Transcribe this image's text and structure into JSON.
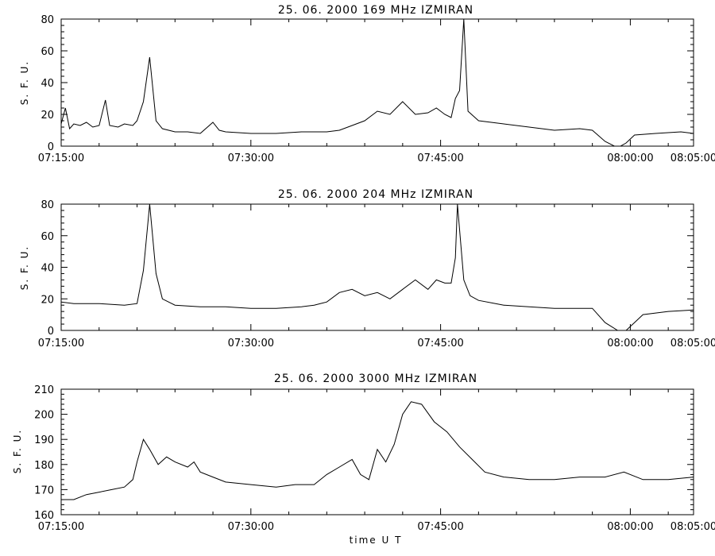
{
  "figure": {
    "xlabel": "time U T"
  },
  "chart_data": [
    {
      "type": "line",
      "title": "25. 06. 2000 169 MHz IZMIRAN",
      "ylabel": "S. F. U.",
      "xlim": [
        "07:15:00",
        "08:05:00"
      ],
      "ylim": [
        0,
        80
      ],
      "yticks": [
        0,
        20,
        40,
        60,
        80
      ],
      "xtick_labels": [
        "07:15:00",
        "07:30:00",
        "07:45:00",
        "08:00:00",
        "08:05:00"
      ],
      "grid": false,
      "series": [
        {
          "points": [
            [
              "07:15:00",
              14
            ],
            [
              "07:15:20",
              24
            ],
            [
              "07:15:40",
              11
            ],
            [
              "07:16:00",
              14
            ],
            [
              "07:16:30",
              13
            ],
            [
              "07:17:00",
              15
            ],
            [
              "07:17:30",
              12
            ],
            [
              "07:18:00",
              13
            ],
            [
              "07:18:30",
              29
            ],
            [
              "07:18:50",
              13
            ],
            [
              "07:19:30",
              12
            ],
            [
              "07:20:00",
              14
            ],
            [
              "07:20:40",
              13
            ],
            [
              "07:21:00",
              16
            ],
            [
              "07:21:30",
              28
            ],
            [
              "07:22:00",
              56
            ],
            [
              "07:22:30",
              16
            ],
            [
              "07:23:00",
              11
            ],
            [
              "07:24:00",
              9
            ],
            [
              "07:25:00",
              9
            ],
            [
              "07:26:00",
              8
            ],
            [
              "07:27:00",
              15
            ],
            [
              "07:27:30",
              10
            ],
            [
              "07:28:00",
              9
            ],
            [
              "07:30:00",
              8
            ],
            [
              "07:32:00",
              8
            ],
            [
              "07:34:00",
              9
            ],
            [
              "07:36:00",
              9
            ],
            [
              "07:37:00",
              10
            ],
            [
              "07:38:00",
              13
            ],
            [
              "07:39:00",
              16
            ],
            [
              "07:40:00",
              22
            ],
            [
              "07:41:00",
              20
            ],
            [
              "07:42:00",
              28
            ],
            [
              "07:43:00",
              20
            ],
            [
              "07:44:00",
              21
            ],
            [
              "07:44:40",
              24
            ],
            [
              "07:45:20",
              20
            ],
            [
              "07:45:50",
              18
            ],
            [
              "07:46:10",
              30
            ],
            [
              "07:46:30",
              35
            ],
            [
              "07:46:50",
              80
            ],
            [
              "07:47:10",
              22
            ],
            [
              "07:48:00",
              16
            ],
            [
              "07:50:00",
              14
            ],
            [
              "07:52:00",
              12
            ],
            [
              "07:54:00",
              10
            ],
            [
              "07:56:00",
              11
            ],
            [
              "07:57:00",
              10
            ],
            [
              "07:58:00",
              3
            ],
            [
              "07:59:00",
              -1
            ],
            [
              "07:59:40",
              2
            ],
            [
              "08:00:20",
              7
            ],
            [
              "08:02:00",
              8
            ],
            [
              "08:04:00",
              9
            ],
            [
              "08:05:00",
              8
            ]
          ]
        }
      ]
    },
    {
      "type": "line",
      "title": "25. 06. 2000 204 MHz IZMIRAN",
      "ylabel": "S. F. U.",
      "xlim": [
        "07:15:00",
        "08:05:00"
      ],
      "ylim": [
        0,
        80
      ],
      "yticks": [
        0,
        20,
        40,
        60,
        80
      ],
      "xtick_labels": [
        "07:15:00",
        "07:30:00",
        "07:45:00",
        "08:00:00",
        "08:05:00"
      ],
      "grid": false,
      "series": [
        {
          "points": [
            [
              "07:15:00",
              18
            ],
            [
              "07:16:00",
              17
            ],
            [
              "07:18:00",
              17
            ],
            [
              "07:20:00",
              16
            ],
            [
              "07:21:00",
              17
            ],
            [
              "07:21:30",
              38
            ],
            [
              "07:22:00",
              80
            ],
            [
              "07:22:30",
              36
            ],
            [
              "07:23:00",
              20
            ],
            [
              "07:24:00",
              16
            ],
            [
              "07:26:00",
              15
            ],
            [
              "07:28:00",
              15
            ],
            [
              "07:30:00",
              14
            ],
            [
              "07:32:00",
              14
            ],
            [
              "07:34:00",
              15
            ],
            [
              "07:35:00",
              16
            ],
            [
              "07:36:00",
              18
            ],
            [
              "07:37:00",
              24
            ],
            [
              "07:38:00",
              26
            ],
            [
              "07:39:00",
              22
            ],
            [
              "07:40:00",
              24
            ],
            [
              "07:41:00",
              20
            ],
            [
              "07:42:00",
              26
            ],
            [
              "07:43:00",
              32
            ],
            [
              "07:44:00",
              26
            ],
            [
              "07:44:40",
              32
            ],
            [
              "07:45:20",
              30
            ],
            [
              "07:45:50",
              30
            ],
            [
              "07:46:10",
              46
            ],
            [
              "07:46:20",
              80
            ],
            [
              "07:46:50",
              32
            ],
            [
              "07:47:20",
              22
            ],
            [
              "07:48:00",
              19
            ],
            [
              "07:50:00",
              16
            ],
            [
              "07:52:00",
              15
            ],
            [
              "07:54:00",
              14
            ],
            [
              "07:56:00",
              14
            ],
            [
              "07:57:00",
              14
            ],
            [
              "07:58:00",
              5
            ],
            [
              "07:59:00",
              0
            ],
            [
              "07:59:40",
              0
            ],
            [
              "08:00:20",
              5
            ],
            [
              "08:01:00",
              10
            ],
            [
              "08:03:00",
              12
            ],
            [
              "08:05:00",
              13
            ]
          ]
        }
      ]
    },
    {
      "type": "line",
      "title": "25. 06. 2000 3000 MHz IZMIRAN",
      "ylabel": "S. F. U.",
      "xlabel": "time U T",
      "xlim": [
        "07:15:00",
        "08:05:00"
      ],
      "ylim": [
        160,
        210
      ],
      "yticks": [
        160,
        170,
        180,
        190,
        200,
        210
      ],
      "xtick_labels": [
        "07:15:00",
        "07:30:00",
        "07:45:00",
        "08:00:00",
        "08:05:00"
      ],
      "grid": false,
      "series": [
        {
          "points": [
            [
              "07:15:00",
              166
            ],
            [
              "07:16:00",
              166
            ],
            [
              "07:17:00",
              168
            ],
            [
              "07:18:00",
              169
            ],
            [
              "07:19:00",
              170
            ],
            [
              "07:20:00",
              171
            ],
            [
              "07:20:40",
              174
            ],
            [
              "07:21:00",
              181
            ],
            [
              "07:21:30",
              190
            ],
            [
              "07:22:00",
              186
            ],
            [
              "07:22:40",
              180
            ],
            [
              "07:23:20",
              183
            ],
            [
              "07:24:00",
              181
            ],
            [
              "07:25:00",
              179
            ],
            [
              "07:25:30",
              181
            ],
            [
              "07:26:00",
              177
            ],
            [
              "07:27:00",
              175
            ],
            [
              "07:28:00",
              173
            ],
            [
              "07:30:00",
              172
            ],
            [
              "07:32:00",
              171
            ],
            [
              "07:33:30",
              172
            ],
            [
              "07:35:00",
              172
            ],
            [
              "07:36:00",
              176
            ],
            [
              "07:37:00",
              179
            ],
            [
              "07:38:00",
              182
            ],
            [
              "07:38:40",
              176
            ],
            [
              "07:39:20",
              174
            ],
            [
              "07:40:00",
              186
            ],
            [
              "07:40:40",
              181
            ],
            [
              "07:41:20",
              188
            ],
            [
              "07:42:00",
              200
            ],
            [
              "07:42:40",
              205
            ],
            [
              "07:43:30",
              204
            ],
            [
              "07:44:30",
              197
            ],
            [
              "07:45:30",
              193
            ],
            [
              "07:46:30",
              187
            ],
            [
              "07:47:30",
              182
            ],
            [
              "07:48:30",
              177
            ],
            [
              "07:50:00",
              175
            ],
            [
              "07:52:00",
              174
            ],
            [
              "07:54:00",
              174
            ],
            [
              "07:56:00",
              175
            ],
            [
              "07:58:00",
              175
            ],
            [
              "07:59:30",
              177
            ],
            [
              "08:01:00",
              174
            ],
            [
              "08:03:00",
              174
            ],
            [
              "08:05:00",
              175
            ]
          ]
        }
      ]
    }
  ]
}
